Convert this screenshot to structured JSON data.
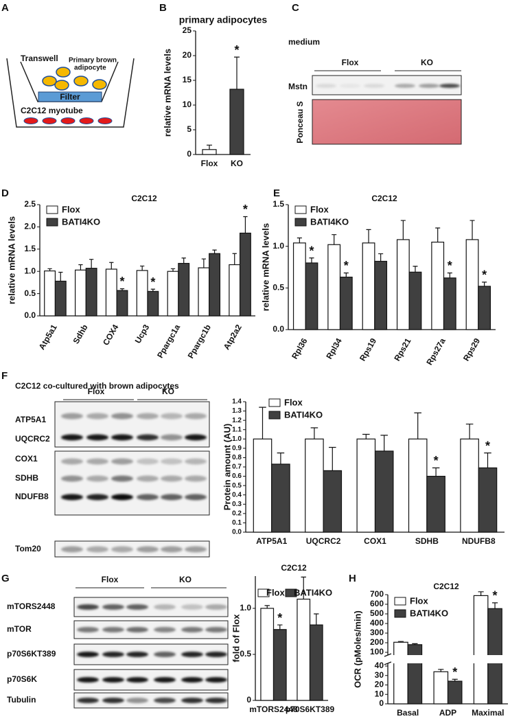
{
  "panel_labels": [
    "A",
    "B",
    "C",
    "D",
    "E",
    "F",
    "G",
    "H"
  ],
  "diagram_a": {
    "transwell": "Transwell",
    "cell_label": [
      "Primary brown",
      "adipocyte"
    ],
    "filter": "Filter",
    "myotube": "C2C12 myotube"
  },
  "blot_c": {
    "title": "medium",
    "groups": [
      "Flox",
      "KO"
    ],
    "rows": [
      "Mstn",
      "Ponceau S"
    ]
  },
  "blot_f": {
    "title": "C2C12 co-cultured with brown adipocytes",
    "groups": [
      "Flox",
      "KO"
    ],
    "rows": [
      "ATP5A1",
      "UQCRC2",
      "COX1",
      "SDHB",
      "NDUFB8",
      "Tom20"
    ]
  },
  "blot_g": {
    "groups": [
      "Flox",
      "KO"
    ],
    "rows": [
      "mTORS2448",
      "mTOR",
      "p70S6KT389",
      "p70S6K",
      "Tubulin"
    ]
  },
  "chart_data": [
    {
      "type": "bar",
      "title": "primary adipocytes",
      "y_label": "relative mRNA levels",
      "categories": [
        "Flox",
        "KO"
      ],
      "values": [
        1.0,
        13.2
      ],
      "errors": [
        0.9,
        6.5
      ],
      "colors": [
        "#ffffff",
        "#404040"
      ],
      "significance": [
        null,
        "*"
      ],
      "ylim": [
        0,
        25
      ],
      "yticks": [
        0,
        5,
        10,
        15,
        20,
        25
      ]
    },
    {
      "type": "bar",
      "title": "C2C12",
      "y_label": "relative mRNA levels",
      "legend": "upper left",
      "categories": [
        "Atp5a1",
        "Sdhb",
        "COX4",
        "Ucp3",
        "Ppargc1a",
        "Ppargc1b",
        "Atp2a2"
      ],
      "series": [
        {
          "name": "Flox",
          "color": "#ffffff",
          "values": [
            1.01,
            1.03,
            1.05,
            1.02,
            1.0,
            1.08,
            1.15
          ],
          "errors": [
            0.05,
            0.12,
            0.15,
            0.1,
            0.06,
            0.2,
            0.25
          ],
          "significance": [
            null,
            null,
            null,
            null,
            null,
            null,
            null
          ]
        },
        {
          "name": "BATI4KO",
          "color": "#404040",
          "values": [
            0.78,
            1.07,
            0.57,
            0.55,
            1.18,
            1.4,
            1.86
          ],
          "errors": [
            0.2,
            0.2,
            0.04,
            0.05,
            0.12,
            0.08,
            0.37
          ],
          "significance": [
            null,
            null,
            "*",
            "*",
            null,
            null,
            "*"
          ]
        }
      ],
      "ylim": [
        0,
        2.5
      ],
      "yticks": [
        {
          "value": 0,
          "label": "0.0"
        },
        0.5,
        {
          "value": 1,
          "label": "1.0"
        },
        1.5,
        {
          "value": 2,
          "label": "2.0"
        },
        2.5
      ]
    },
    {
      "type": "bar",
      "title": "C2C12",
      "y_label": "relative mRNA levels",
      "legend": "upper left",
      "categories": [
        "Rpl36",
        "Rpl34",
        "Rps19",
        "Rps21",
        "Rps27a",
        "Rps29"
      ],
      "series": [
        {
          "name": "Flox",
          "color": "#ffffff",
          "values": [
            1.04,
            1.02,
            1.04,
            1.08,
            1.05,
            1.08
          ],
          "errors": [
            0.06,
            0.12,
            0.16,
            0.23,
            0.17,
            0.23
          ],
          "significance": [
            null,
            null,
            null,
            null,
            null,
            null
          ]
        },
        {
          "name": "BATI4KO",
          "color": "#404040",
          "values": [
            0.8,
            0.63,
            0.82,
            0.69,
            0.62,
            0.52
          ],
          "errors": [
            0.06,
            0.05,
            0.09,
            0.07,
            0.06,
            0.05
          ],
          "significance": [
            "*",
            "*",
            null,
            null,
            "*",
            "*"
          ]
        }
      ],
      "ylim": [
        0,
        1.5
      ],
      "yticks": [
        {
          "value": 0,
          "label": "0.0"
        },
        0.5,
        {
          "value": 1,
          "label": "1.0"
        },
        1.5
      ]
    },
    {
      "type": "bar",
      "y_label": "Protein amount (AU)",
      "legend": "upper left",
      "categories": [
        "ATP5A1",
        "UQCRC2",
        "COX1",
        "SDHB",
        "NDUFB8"
      ],
      "series": [
        {
          "name": "Flox",
          "color": "#ffffff",
          "values": [
            1.0,
            1.0,
            1.0,
            1.0,
            1.0
          ],
          "errors": [
            0.34,
            0.12,
            0.05,
            0.28,
            0.16
          ],
          "significance": [
            null,
            null,
            null,
            null,
            null
          ]
        },
        {
          "name": "BATI4KO",
          "color": "#404040",
          "values": [
            0.73,
            0.66,
            0.87,
            0.6,
            0.69
          ],
          "errors": [
            0.12,
            0.25,
            0.17,
            0.09,
            0.16
          ],
          "significance": [
            null,
            null,
            null,
            "*",
            "*"
          ]
        }
      ],
      "ylim": [
        0,
        1.4
      ],
      "yticks": [
        {
          "value": 0,
          "label": "0.0"
        },
        0.1,
        0.2,
        0.3,
        0.4,
        0.5,
        0.6,
        0.7,
        0.8,
        0.9,
        {
          "value": 1,
          "label": "1.0"
        },
        1.1,
        1.2,
        1.3,
        1.4
      ]
    },
    {
      "type": "bar",
      "title": "C2C12",
      "y_label": "fold of Flox",
      "legend": "top",
      "categories": [
        "mTORS2448",
        "p70S6KT389"
      ],
      "series": [
        {
          "name": "Flox",
          "color": "#ffffff",
          "values": [
            1.0,
            1.1
          ],
          "errors": [
            0.03,
            0.24
          ],
          "significance": [
            null,
            null
          ]
        },
        {
          "name": "BATI4KO",
          "color": "#404040",
          "values": [
            0.77,
            0.82
          ],
          "errors": [
            0.05,
            0.12
          ],
          "significance": [
            "*",
            null
          ]
        }
      ],
      "ylim": [
        0,
        1.35
      ],
      "yticks": [
        0,
        0.5,
        {
          "value": 1,
          "label": "1.0"
        }
      ]
    },
    {
      "type": "bar",
      "title": "C2C12",
      "y_label": "OCR (pMoles/min)",
      "legend": "upper left",
      "categories": [
        "Basal",
        "ADP",
        "Maximal"
      ],
      "series": [
        {
          "name": "Flox",
          "color": "#ffffff",
          "values": [
            205,
            34,
            690
          ],
          "errors": [
            8,
            2.5,
            40
          ],
          "significance": [
            null,
            null,
            null
          ]
        },
        {
          "name": "BATI4KO",
          "color": "#404040",
          "values": [
            180,
            24,
            555
          ],
          "errors": [
            10,
            2,
            60
          ],
          "significance": [
            null,
            "*",
            "*"
          ]
        }
      ],
      "ylim": [
        0,
        700
      ],
      "ybreak": [
        40,
        100
      ],
      "yticks": [
        0,
        10,
        20,
        30,
        40,
        100,
        200,
        300,
        400,
        500,
        600,
        700
      ]
    }
  ]
}
